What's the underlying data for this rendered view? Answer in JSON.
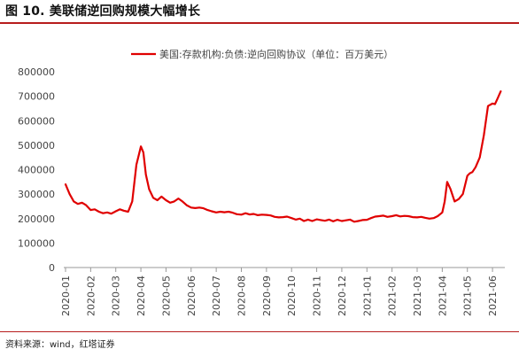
{
  "header": {
    "title": "图 10. 美联储逆回购规模大幅增长"
  },
  "footer": {
    "source": "资料来源：wind，红塔证券"
  },
  "colors": {
    "series": "#e00000",
    "rule": "#b71c1c",
    "axis": "#999999",
    "text": "#444444"
  },
  "chart_data": {
    "type": "line",
    "title": "",
    "xlabel": "",
    "ylabel": "",
    "ylim": [
      0,
      800000
    ],
    "yticks": [
      0,
      100000,
      200000,
      300000,
      400000,
      500000,
      600000,
      700000,
      800000
    ],
    "ytick_labels": [
      "0",
      "100000",
      "200000",
      "300000",
      "400000",
      "500000",
      "600000",
      "700000",
      "800000"
    ],
    "xticks": [
      "2020-01",
      "2020-02",
      "2020-03",
      "2020-04",
      "2020-05",
      "2020-06",
      "2020-07",
      "2020-08",
      "2020-09",
      "2020-10",
      "2020-11",
      "2020-12",
      "2021-01",
      "2021-02",
      "2021-03",
      "2021-04",
      "2021-05",
      "2021-06"
    ],
    "grid": false,
    "legend_position": "top-right",
    "series": [
      {
        "name": "美国:存款机构:负债:逆向回购协议（单位：百万美元）",
        "x": [
          "2020-01-01",
          "2020-01-06",
          "2020-01-11",
          "2020-01-16",
          "2020-01-21",
          "2020-01-26",
          "2020-02-01",
          "2020-02-06",
          "2020-02-11",
          "2020-02-16",
          "2020-02-21",
          "2020-02-26",
          "2020-03-01",
          "2020-03-06",
          "2020-03-11",
          "2020-03-16",
          "2020-03-21",
          "2020-03-26",
          "2020-04-01",
          "2020-04-04",
          "2020-04-07",
          "2020-04-11",
          "2020-04-16",
          "2020-04-21",
          "2020-04-26",
          "2020-05-01",
          "2020-05-06",
          "2020-05-11",
          "2020-05-16",
          "2020-05-21",
          "2020-05-26",
          "2020-06-01",
          "2020-06-06",
          "2020-06-11",
          "2020-06-16",
          "2020-06-21",
          "2020-06-26",
          "2020-07-01",
          "2020-07-06",
          "2020-07-11",
          "2020-07-16",
          "2020-07-21",
          "2020-07-26",
          "2020-08-01",
          "2020-08-06",
          "2020-08-11",
          "2020-08-16",
          "2020-08-21",
          "2020-08-26",
          "2020-09-01",
          "2020-09-06",
          "2020-09-11",
          "2020-09-16",
          "2020-09-21",
          "2020-09-26",
          "2020-10-01",
          "2020-10-06",
          "2020-10-11",
          "2020-10-16",
          "2020-10-21",
          "2020-10-26",
          "2020-11-01",
          "2020-11-06",
          "2020-11-11",
          "2020-11-16",
          "2020-11-21",
          "2020-11-26",
          "2020-12-01",
          "2020-12-06",
          "2020-12-11",
          "2020-12-16",
          "2020-12-21",
          "2020-12-26",
          "2021-01-01",
          "2021-01-06",
          "2021-01-11",
          "2021-01-16",
          "2021-01-21",
          "2021-01-26",
          "2021-02-01",
          "2021-02-06",
          "2021-02-11",
          "2021-02-16",
          "2021-02-21",
          "2021-02-26",
          "2021-03-01",
          "2021-03-06",
          "2021-03-11",
          "2021-03-16",
          "2021-03-21",
          "2021-03-26",
          "2021-04-01",
          "2021-04-04",
          "2021-04-07",
          "2021-04-11",
          "2021-04-16",
          "2021-04-21",
          "2021-04-26",
          "2021-05-01",
          "2021-05-04",
          "2021-05-07",
          "2021-05-11",
          "2021-05-16",
          "2021-05-21",
          "2021-05-26",
          "2021-06-01",
          "2021-06-04",
          "2021-06-07",
          "2021-06-11"
        ],
        "values": [
          340000,
          300000,
          270000,
          260000,
          265000,
          255000,
          235000,
          238000,
          228000,
          222000,
          225000,
          220000,
          230000,
          238000,
          232000,
          228000,
          270000,
          420000,
          495000,
          470000,
          380000,
          320000,
          285000,
          275000,
          290000,
          275000,
          265000,
          270000,
          282000,
          270000,
          255000,
          245000,
          243000,
          245000,
          242000,
          235000,
          230000,
          225000,
          228000,
          226000,
          228000,
          224000,
          218000,
          216000,
          222000,
          217000,
          219000,
          214000,
          216000,
          215000,
          213000,
          207000,
          205000,
          206000,
          208000,
          202000,
          196000,
          200000,
          190000,
          196000,
          190000,
          197000,
          194000,
          191000,
          196000,
          189000,
          195000,
          190000,
          193000,
          196000,
          187000,
          190000,
          194000,
          195000,
          202000,
          208000,
          210000,
          212000,
          207000,
          210000,
          214000,
          209000,
          211000,
          210000,
          206000,
          205000,
          207000,
          203000,
          200000,
          202000,
          210000,
          225000,
          270000,
          350000,
          320000,
          270000,
          280000,
          300000,
          375000,
          385000,
          390000,
          410000,
          450000,
          540000,
          660000,
          670000,
          668000,
          690000,
          720000
        ]
      }
    ]
  }
}
